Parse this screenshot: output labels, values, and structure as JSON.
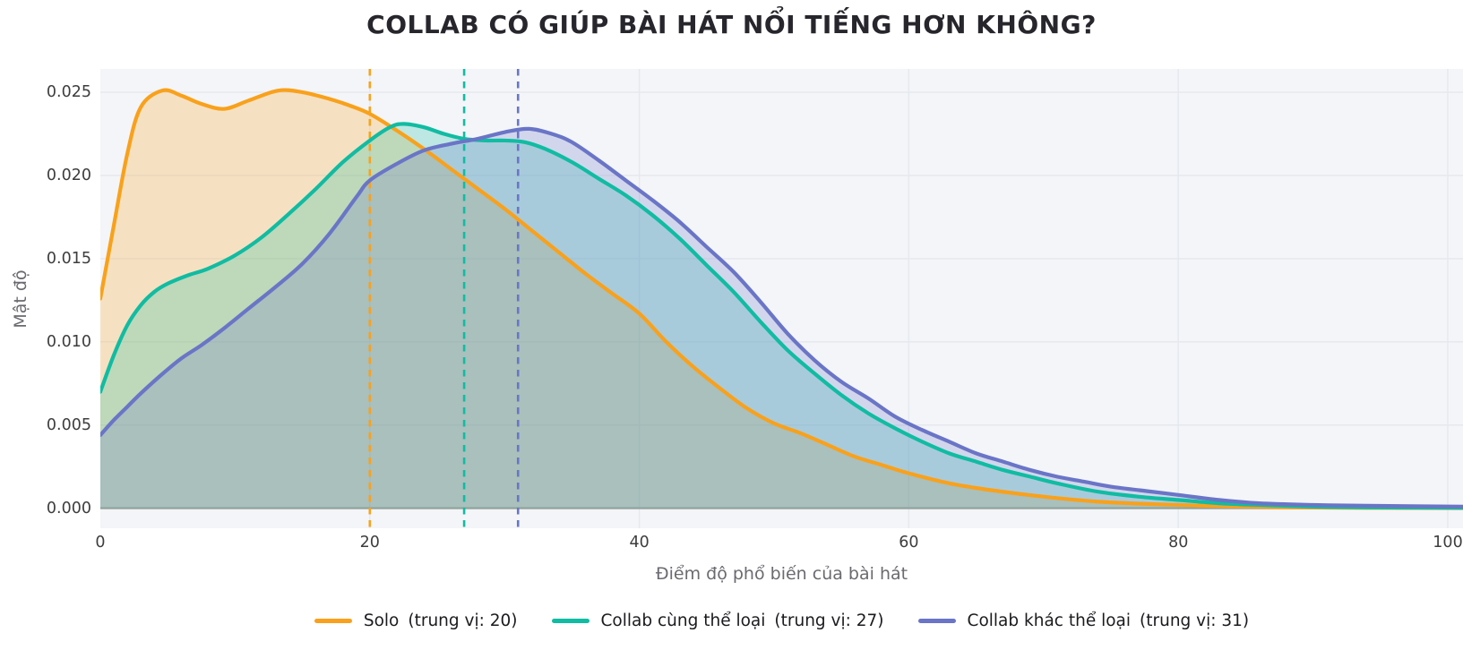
{
  "title": "COLLAB CÓ GIÚP BÀI HÁT NỔI TIẾNG HƠN KHÔNG?",
  "colors": {
    "solo": "#F9A11B",
    "collab_same_genre": "#10BCA2",
    "collab_diff_genre": "#6A75C7",
    "figure_bg": "#FFFFFF",
    "plot_bg": "#F3F5F8",
    "grid": "#E5E8EE",
    "baseline": "#97A198",
    "title_text": "#26262C",
    "tick_text": "#3D3D3D",
    "axis_label_text": "#6A6A70",
    "legend_text": "#1B1B1F"
  },
  "chart_data": {
    "type": "area",
    "subtype": "kde-density",
    "title": "COLLAB CÓ GIÚP BÀI HÁT NỔI TIẾNG HƠN KHÔNG?",
    "xlabel": "Điểm độ phổ biến của bài hát",
    "ylabel": "Mật độ",
    "xlim": [
      0,
      101.13
    ],
    "ylim": [
      -0.0012,
      0.0264
    ],
    "grid": true,
    "legend_position": "bottom-center",
    "xticks": {
      "values": [
        0,
        20,
        40,
        60,
        80,
        100
      ],
      "labels": [
        "0",
        "20",
        "40",
        "60",
        "80",
        "100"
      ]
    },
    "yticks": {
      "values": [
        0,
        0.005,
        0.01,
        0.015,
        0.02,
        0.025
      ],
      "labels": [
        "0.000",
        "0.005",
        "0.010",
        "0.015",
        "0.020",
        "0.025"
      ]
    },
    "series": [
      {
        "name": "Solo",
        "median": 20,
        "median_label": "(trung vị: 20)",
        "color": "#F9A11B",
        "points": [
          [
            0,
            0.0126
          ],
          [
            1,
            0.017
          ],
          [
            2,
            0.0213
          ],
          [
            3,
            0.0241
          ],
          [
            4.6,
            0.0251
          ],
          [
            6,
            0.0248
          ],
          [
            7.5,
            0.0243
          ],
          [
            9.2,
            0.024
          ],
          [
            11,
            0.0245
          ],
          [
            13.2,
            0.0251
          ],
          [
            15,
            0.025
          ],
          [
            17,
            0.0246
          ],
          [
            18.5,
            0.0242
          ],
          [
            20,
            0.0237
          ],
          [
            22,
            0.0227
          ],
          [
            24,
            0.0216
          ],
          [
            26,
            0.0204
          ],
          [
            28,
            0.0192
          ],
          [
            30,
            0.018
          ],
          [
            32,
            0.0167
          ],
          [
            34,
            0.0154
          ],
          [
            36,
            0.0141
          ],
          [
            38,
            0.0129
          ],
          [
            40,
            0.0117
          ],
          [
            42,
            0.01
          ],
          [
            44,
            0.0085
          ],
          [
            46,
            0.0072
          ],
          [
            48,
            0.006
          ],
          [
            50,
            0.0051
          ],
          [
            52,
            0.0045
          ],
          [
            54,
            0.0038
          ],
          [
            56,
            0.0031
          ],
          [
            58,
            0.0026
          ],
          [
            60,
            0.0021
          ],
          [
            63,
            0.0015
          ],
          [
            66,
            0.0011
          ],
          [
            70,
            0.0007
          ],
          [
            74,
            0.0004
          ],
          [
            78,
            0.00025
          ],
          [
            82,
            0.00015
          ],
          [
            86,
            8e-05
          ],
          [
            90,
            4e-05
          ],
          [
            95,
            2e-05
          ],
          [
            101.13,
            1e-05
          ]
        ]
      },
      {
        "name": "Collab cùng thể loại",
        "median": 27,
        "median_label": "(trung vị: 27)",
        "color": "#10BCA2",
        "points": [
          [
            0,
            0.007
          ],
          [
            1,
            0.0092
          ],
          [
            2,
            0.011
          ],
          [
            3,
            0.0122
          ],
          [
            4,
            0.013
          ],
          [
            5,
            0.0135
          ],
          [
            6.5,
            0.014
          ],
          [
            8,
            0.0144
          ],
          [
            10,
            0.0152
          ],
          [
            12,
            0.0163
          ],
          [
            14,
            0.0177
          ],
          [
            16,
            0.0192
          ],
          [
            18,
            0.0208
          ],
          [
            20,
            0.0221
          ],
          [
            21.5,
            0.0229
          ],
          [
            22.5,
            0.0231
          ],
          [
            24,
            0.0229
          ],
          [
            25.5,
            0.0225
          ],
          [
            27,
            0.0222
          ],
          [
            28.5,
            0.0221
          ],
          [
            30,
            0.0221
          ],
          [
            31.5,
            0.022
          ],
          [
            33,
            0.0216
          ],
          [
            35,
            0.0208
          ],
          [
            37,
            0.0198
          ],
          [
            39,
            0.0188
          ],
          [
            41,
            0.0176
          ],
          [
            43,
            0.0162
          ],
          [
            45,
            0.0146
          ],
          [
            47,
            0.013
          ],
          [
            49,
            0.0112
          ],
          [
            51,
            0.0095
          ],
          [
            53,
            0.0081
          ],
          [
            55,
            0.0068
          ],
          [
            57,
            0.0057
          ],
          [
            59,
            0.0048
          ],
          [
            61,
            0.004
          ],
          [
            63,
            0.0033
          ],
          [
            65,
            0.0028
          ],
          [
            67,
            0.0023
          ],
          [
            69,
            0.0019
          ],
          [
            71,
            0.0015
          ],
          [
            74,
            0.001
          ],
          [
            77,
            0.0007
          ],
          [
            80,
            0.0005
          ],
          [
            83,
            0.0003
          ],
          [
            86,
            0.0002
          ],
          [
            90,
            0.0001
          ],
          [
            94,
            5e-05
          ],
          [
            101.13,
            2e-05
          ]
        ]
      },
      {
        "name": "Collab khác thể loại",
        "median": 31,
        "median_label": "(trung vị: 31)",
        "color": "#6A75C7",
        "points": [
          [
            0,
            0.0044
          ],
          [
            1,
            0.0053
          ],
          [
            2,
            0.0061
          ],
          [
            3,
            0.0069
          ],
          [
            4.5,
            0.008
          ],
          [
            6,
            0.009
          ],
          [
            7.5,
            0.0098
          ],
          [
            9,
            0.0107
          ],
          [
            11,
            0.012
          ],
          [
            13,
            0.0133
          ],
          [
            15,
            0.0147
          ],
          [
            17,
            0.0165
          ],
          [
            19,
            0.0187
          ],
          [
            20,
            0.0197
          ],
          [
            22,
            0.0207
          ],
          [
            24,
            0.0215
          ],
          [
            26,
            0.0219
          ],
          [
            28,
            0.0222
          ],
          [
            30,
            0.0226
          ],
          [
            31.8,
            0.0228
          ],
          [
            33.5,
            0.0225
          ],
          [
            35,
            0.022
          ],
          [
            37,
            0.0209
          ],
          [
            39,
            0.0197
          ],
          [
            41,
            0.0185
          ],
          [
            43,
            0.0172
          ],
          [
            45,
            0.0157
          ],
          [
            47,
            0.0142
          ],
          [
            49,
            0.0124
          ],
          [
            51,
            0.0105
          ],
          [
            53,
            0.0089
          ],
          [
            55,
            0.0076
          ],
          [
            57,
            0.0066
          ],
          [
            59,
            0.0055
          ],
          [
            61,
            0.0047
          ],
          [
            63,
            0.004
          ],
          [
            65,
            0.0033
          ],
          [
            67,
            0.0028
          ],
          [
            69,
            0.0023
          ],
          [
            71,
            0.0019
          ],
          [
            73,
            0.0016
          ],
          [
            75,
            0.0013
          ],
          [
            78,
            0.001
          ],
          [
            80,
            0.0008
          ],
          [
            83,
            0.0005
          ],
          [
            86,
            0.0003
          ],
          [
            90,
            0.0002
          ],
          [
            94,
            0.00015
          ],
          [
            101.13,
            0.0001
          ]
        ]
      }
    ]
  }
}
